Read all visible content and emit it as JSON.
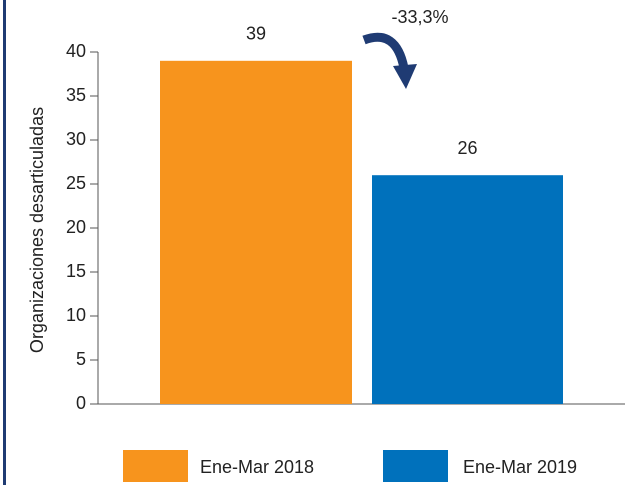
{
  "chart_data": {
    "type": "bar",
    "ylabel": "Organizaciones desarticuladas",
    "series": [
      {
        "name": "Ene-Mar 2018",
        "color": "#f7941d",
        "values": [
          39
        ]
      },
      {
        "name": "Ene-Mar 2019",
        "color": "#0071bc",
        "values": [
          26
        ]
      }
    ],
    "annotations": [
      {
        "text": "-33,3%"
      }
    ],
    "ylim": [
      0,
      40
    ],
    "yticks": [
      0,
      5,
      10,
      15,
      20,
      25,
      30,
      35,
      40
    ],
    "grid": false,
    "legend": "bottom"
  }
}
